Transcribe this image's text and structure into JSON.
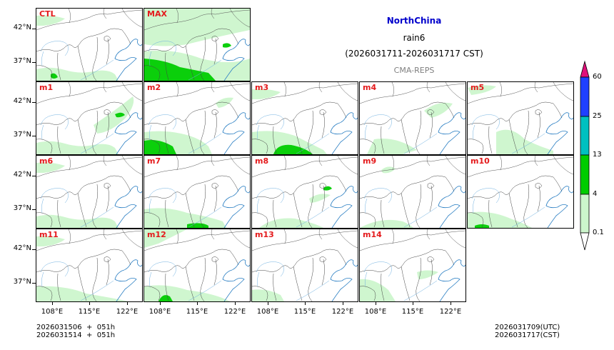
{
  "header": {
    "region": "NorthChina",
    "variable": "rain6",
    "period": "(2026031711-2026031717 CST)",
    "model": "CMA-REPS",
    "region_color": "#0000cc"
  },
  "panels": [
    {
      "label": "CTL"
    },
    {
      "label": "MAX"
    },
    {
      "label": "m1"
    },
    {
      "label": "m2"
    },
    {
      "label": "m3"
    },
    {
      "label": "m4"
    },
    {
      "label": "m5"
    },
    {
      "label": "m6"
    },
    {
      "label": "m7"
    },
    {
      "label": "m8"
    },
    {
      "label": "m9"
    },
    {
      "label": "m10"
    },
    {
      "label": "m11"
    },
    {
      "label": "m12"
    },
    {
      "label": "m13"
    },
    {
      "label": "m14"
    }
  ],
  "axes": {
    "lat_ticks": [
      "42°N",
      "37°N"
    ],
    "lon_ticks": [
      "108°E",
      "115°E",
      "122°E"
    ]
  },
  "colorbar": {
    "levels": [
      "0.1",
      "4",
      "13",
      "25",
      "60"
    ],
    "colors": [
      "#ccf5cc",
      "#00cc00",
      "#00c0c0",
      "#2040ff",
      "#e0107a"
    ]
  },
  "footer": {
    "init_line1": "2026031506  +  051h",
    "init_line2": "2026031514  +  051h",
    "valid_utc": "2026031709(UTC)",
    "valid_cst": "2026031717(CST)"
  },
  "chart_data": {
    "type": "heatmap",
    "title": "NorthChina rain6 (2026031711-2026031717 CST) CMA-REPS",
    "panels": [
      "CTL",
      "MAX",
      "m1",
      "m2",
      "m3",
      "m4",
      "m5",
      "m6",
      "m7",
      "m8",
      "m9",
      "m10",
      "m11",
      "m12",
      "m13",
      "m14"
    ],
    "x_ticks": [
      "108°E",
      "115°E",
      "122°E"
    ],
    "y_ticks": [
      "42°N",
      "37°N"
    ],
    "colorbar_levels_mm": [
      0.1,
      4,
      13,
      25,
      60
    ],
    "colorbar_colors": [
      "#ccf5cc",
      "#00cc00",
      "#00c0c0",
      "#2040ff",
      "#e0107a"
    ],
    "extend": "both",
    "notes": "6-hour accumulated precipitation; mostly light rain (0.1-4mm) in south and northwest; 4-13mm patches in MAX, m2, m3, m7, m12 in south"
  }
}
